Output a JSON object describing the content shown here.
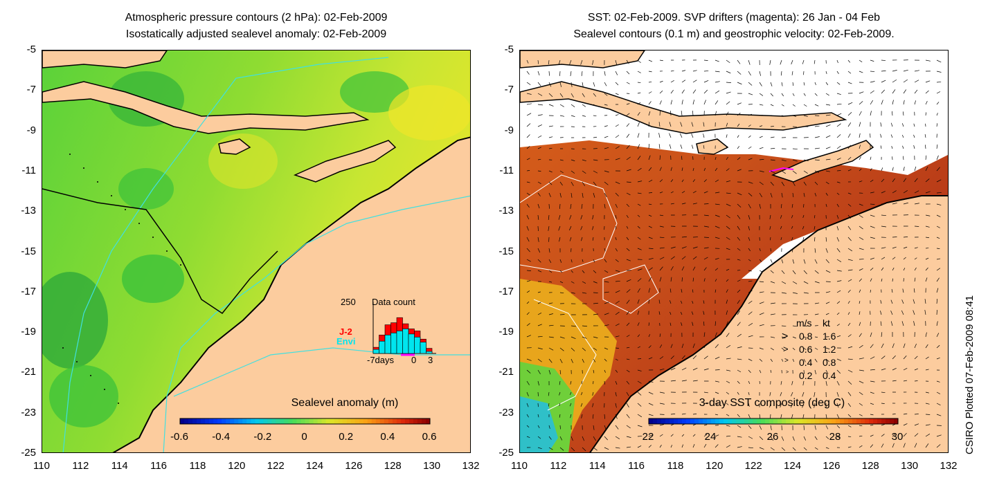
{
  "left_panel": {
    "title_line1": "Atmospheric pressure contours (2 hPa): 02-Feb-2009",
    "title_line2": "Isostatically adjusted sealevel anomaly: 02-Feb-2009",
    "y_ticks": [
      "-5",
      "-7",
      "-9",
      "-11",
      "-13",
      "-15",
      "-17",
      "-19",
      "-21",
      "-23",
      "-25"
    ],
    "x_ticks": [
      "110",
      "112",
      "114",
      "116",
      "118",
      "120",
      "122",
      "124",
      "126",
      "128",
      "130",
      "132"
    ],
    "colorbar_label": "Sealevel anomaly (m)",
    "colorbar_ticks": [
      "-0.6",
      "-0.4",
      "-0.2",
      "0",
      "0.2",
      "0.4",
      "0.6"
    ],
    "colorbar_range": [
      -0.6,
      0.6
    ],
    "data_count": {
      "title": "Data count",
      "max_label": "250",
      "series": [
        {
          "name": "J-2",
          "color": "#ff0000"
        },
        {
          "name": "Envi",
          "color": "#00e5ee"
        }
      ],
      "x_label_start": "-7days",
      "x_label_zero": "0",
      "x_label_end": "3",
      "chart_data": {
        "type": "bar",
        "title": "Data count",
        "ylim": [
          0,
          250
        ],
        "x": [
          -7,
          -6,
          -5,
          -4,
          -3,
          -2,
          -1,
          0,
          1,
          2
        ],
        "series": [
          {
            "name": "J-2",
            "values": [
              30,
              90,
              140,
              150,
              175,
              145,
              120,
              110,
              70,
              25
            ]
          },
          {
            "name": "Envi",
            "values": [
              20,
              60,
              90,
              100,
              110,
              120,
              95,
              80,
              55,
              10
            ]
          }
        ]
      }
    }
  },
  "right_panel": {
    "title_line1": "SST: 02-Feb-2009. SVP drifters (magenta): 26 Jan - 04 Feb",
    "title_line2": "Sealevel contours (0.1 m) and geostrophic velocity: 02-Feb-2009.",
    "y_ticks": [
      "-5",
      "-7",
      "-9",
      "-11",
      "-13",
      "-15",
      "-17",
      "-19",
      "-21",
      "-23",
      "-25"
    ],
    "x_ticks": [
      "110",
      "112",
      "114",
      "116",
      "118",
      "120",
      "122",
      "124",
      "126",
      "128",
      "130",
      "132"
    ],
    "colorbar_label": "3-day SST composite (deg C)",
    "colorbar_ticks": [
      "22",
      "24",
      "26",
      "28",
      "30"
    ],
    "colorbar_range": [
      22,
      30
    ],
    "velocity_legend": {
      "header_ms": "m/s",
      "header_kt": "kt",
      "rows": [
        {
          "ms": "0.8",
          "kt": "1.6"
        },
        {
          "ms": "0.6",
          "kt": "1.2"
        },
        {
          "ms": "0.4",
          "kt": "0.8"
        },
        {
          "ms": "0.2",
          "kt": "0.4"
        }
      ]
    }
  },
  "credit": "CSIRO Plotted 07-Feb-2009 08:41"
}
